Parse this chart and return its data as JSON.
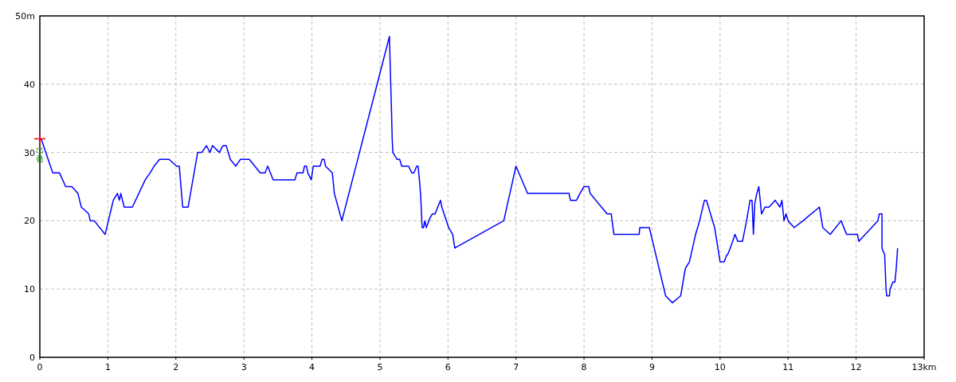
{
  "chart_data": {
    "type": "line",
    "x": [
      0,
      0.02,
      0.19,
      0.29,
      0.38,
      0.47,
      0.56,
      0.61,
      0.72,
      0.74,
      0.8,
      0.96,
      1.08,
      1.14,
      1.17,
      1.19,
      1.24,
      1.36,
      1.55,
      1.62,
      1.68,
      1.76,
      1.9,
      2.01,
      2.05,
      2.1,
      2.18,
      2.32,
      2.38,
      2.45,
      2.5,
      2.54,
      2.64,
      2.69,
      2.74,
      2.8,
      2.88,
      2.95,
      3.08,
      3.24,
      3.31,
      3.35,
      3.43,
      3.75,
      3.78,
      3.87,
      3.89,
      3.92,
      3.94,
      3.99,
      4.02,
      4.12,
      4.15,
      4.18,
      4.2,
      4.3,
      4.33,
      4.44,
      5.14,
      5.15,
      5.17,
      5.18,
      5.19,
      5.25,
      5.29,
      5.32,
      5.42,
      5.47,
      5.5,
      5.54,
      5.56,
      5.58,
      5.6,
      5.62,
      5.64,
      5.66,
      5.68,
      5.74,
      5.77,
      5.81,
      5.89,
      5.91,
      6.01,
      6.07,
      6.1,
      6.82,
      6.91,
      7.0,
      7.17,
      7.78,
      7.8,
      7.89,
      7.94,
      8.0,
      8.07,
      8.09,
      8.34,
      8.4,
      8.44,
      8.81,
      8.82,
      8.96,
      9.02,
      9.2,
      9.3,
      9.42,
      9.49,
      9.55,
      9.64,
      9.7,
      9.77,
      9.8,
      9.92,
      10.0,
      10.06,
      10.1,
      10.11,
      10.15,
      10.22,
      10.26,
      10.33,
      10.39,
      10.44,
      10.47,
      10.49,
      10.51,
      10.54,
      10.57,
      10.61,
      10.66,
      10.72,
      10.81,
      10.88,
      10.91,
      10.94,
      10.97,
      11.0,
      11.09,
      11.22,
      11.46,
      11.51,
      11.62,
      11.78,
      11.86,
      12.02,
      12.04,
      12.32,
      12.34,
      12.38,
      12.38,
      12.42,
      12.44,
      12.45,
      12.49,
      12.5,
      12.54,
      12.57,
      12.59,
      12.61
    ],
    "series": [
      {
        "color": "#0000ff",
        "values": [
          32,
          32,
          27,
          27,
          25,
          25,
          24,
          22,
          21,
          20,
          20,
          18,
          23,
          24,
          23,
          24,
          22,
          22,
          26,
          27,
          28,
          29,
          29,
          28,
          28,
          22,
          22,
          30,
          30,
          31,
          30,
          31,
          30,
          31,
          31,
          29,
          28,
          29,
          29,
          27,
          27,
          28,
          26,
          26,
          27,
          27,
          28,
          28,
          27,
          26,
          28,
          28,
          29,
          29,
          28,
          27,
          24,
          20,
          47,
          43,
          36,
          32,
          30,
          29,
          29,
          28,
          28,
          27,
          27,
          28,
          28,
          26,
          23.5,
          19,
          19,
          20,
          19,
          20.5,
          21,
          21,
          23,
          22,
          19,
          18,
          16,
          20,
          24,
          28,
          24,
          24,
          23,
          23,
          24,
          25,
          25,
          24,
          21,
          21,
          18,
          18,
          19,
          19,
          16.5,
          9,
          8,
          9,
          13,
          14,
          18,
          20,
          23,
          23,
          19,
          14,
          14,
          15,
          15,
          16,
          18,
          17,
          17,
          20,
          23,
          23,
          18,
          22.5,
          24,
          25,
          21,
          22,
          22,
          23,
          22,
          23,
          20,
          21,
          20,
          19,
          20,
          22,
          19,
          18,
          20,
          18,
          18,
          17,
          20,
          21,
          21,
          16,
          15,
          10,
          9,
          9,
          10,
          11,
          11,
          13,
          16
        ]
      }
    ],
    "xlim": [
      0,
      13
    ],
    "ylim": [
      0,
      50
    ],
    "xticks": [
      0,
      1,
      2,
      3,
      4,
      5,
      6,
      7,
      8,
      9,
      10,
      11,
      12,
      {
        "value": 13,
        "label": "13km"
      }
    ],
    "yticks": [
      0,
      10,
      20,
      30,
      40,
      {
        "value": 50,
        "label": "50m"
      }
    ],
    "grid": true,
    "line_style": "solid",
    "annotations": [
      {
        "text": "出発",
        "x": 0,
        "y": 32
      }
    ]
  }
}
